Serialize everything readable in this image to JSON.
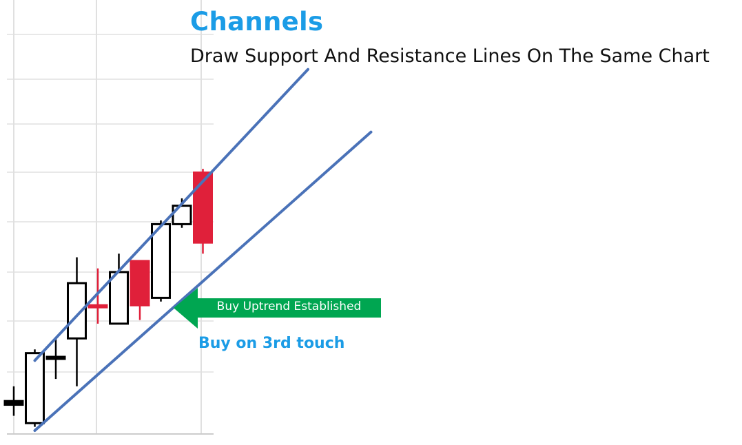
{
  "header": {
    "title": "Channels",
    "subtitle": "Draw Support And Resistance Lines On The Same Chart"
  },
  "annotations": {
    "arrow_label": "Buy Uptrend Established",
    "note": "Buy on 3rd touch"
  },
  "colors": {
    "title": "#1b9ce6",
    "bullish_candle": "#000000",
    "bearish_candle": "#e0203a",
    "trendline": "#4a72b8",
    "arrow": "#00a651",
    "grid": "#e0e0e0"
  },
  "chart_data": {
    "type": "candlestick",
    "title": "Channels",
    "subtitle": "Draw Support And Resistance Lines On The Same Chart",
    "xlabel": "",
    "ylabel": "",
    "ylim": [
      0,
      100
    ],
    "grid": true,
    "candles": [
      {
        "open": 8,
        "high": 12,
        "low": 4,
        "close": 7,
        "color": "bullish"
      },
      {
        "open": 2,
        "high": 22,
        "low": 1,
        "close": 21,
        "color": "bullish"
      },
      {
        "open": 20,
        "high": 25,
        "low": 14,
        "close": 20,
        "color": "bullish"
      },
      {
        "open": 25,
        "high": 47,
        "low": 12,
        "close": 40,
        "color": "bullish"
      },
      {
        "open": 34,
        "high": 44,
        "low": 29,
        "close": 34,
        "color": "bearish"
      },
      {
        "open": 29,
        "high": 48,
        "low": 29,
        "close": 43,
        "color": "bullish"
      },
      {
        "open": 46,
        "high": 46,
        "low": 30,
        "close": 34,
        "color": "bearish"
      },
      {
        "open": 36,
        "high": 57,
        "low": 35,
        "close": 56,
        "color": "bullish"
      },
      {
        "open": 56,
        "high": 63,
        "low": 55,
        "close": 61,
        "color": "bullish"
      },
      {
        "open": 70,
        "high": 71,
        "low": 48,
        "close": 51,
        "color": "bearish"
      }
    ],
    "trendlines": [
      {
        "name": "resistance",
        "start": {
          "index": 1,
          "price": 19
        },
        "end": {
          "index": 14,
          "price": 98
        }
      },
      {
        "name": "support",
        "start": {
          "index": 1,
          "price": 0
        },
        "end": {
          "index": 17,
          "price": 81
        }
      }
    ],
    "annotations": [
      {
        "text": "Buy Uptrend Established",
        "type": "arrow-left"
      },
      {
        "text": "Buy on 3rd touch",
        "type": "text"
      }
    ]
  }
}
